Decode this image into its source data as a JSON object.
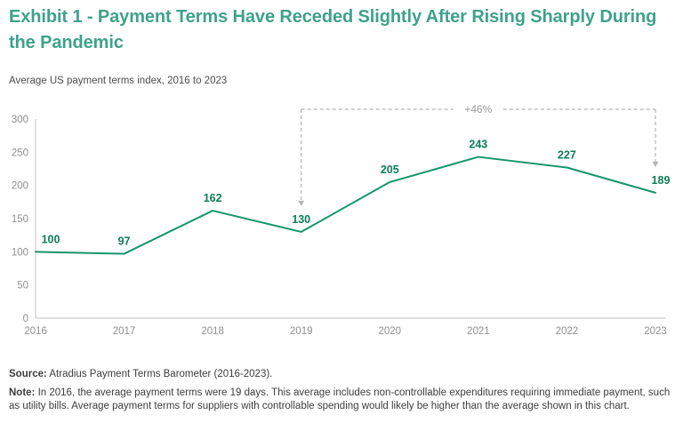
{
  "header": {
    "title": "Exhibit 1 - Payment Terms Have Receded Slightly After Rising Sharply During the Pandemic",
    "subtitle": "Average US payment terms index, 2016 to 2023"
  },
  "chart_data": {
    "type": "line",
    "title": "Average US payment terms index, 2016 to 2023",
    "categories": [
      "2016",
      "2017",
      "2018",
      "2019",
      "2020",
      "2021",
      "2022",
      "2023"
    ],
    "values": [
      100,
      97,
      162,
      130,
      205,
      243,
      227,
      189
    ],
    "xlabel": "",
    "ylabel": "",
    "ylim": [
      0,
      300
    ],
    "yticks": [
      0,
      50,
      100,
      150,
      200,
      250,
      300
    ],
    "grid": false,
    "legend": false,
    "annotation": {
      "label": "+46%",
      "from_category": "2019",
      "to_category": "2023"
    }
  },
  "footer": {
    "source_label": "Source:",
    "source_text": " Atradius Payment Terms Barometer (2016-2023).",
    "note_label": "Note:",
    "note_text": " In 2016, the average payment terms were 19 days. This average includes non-controllable expenditures requiring immediate payment, such as utility bills. Average payment terms for suppliers with controllable spending would likely be higher than the average shown in this chart."
  },
  "colors": {
    "title_green": "#3ea28b",
    "subtitle_gray": "#4d4d4d",
    "line_green": "#149669",
    "data_label_green": "#0b7d57",
    "axis_gray": "#d4d4d4",
    "tick_label_gray": "#8f8f8f",
    "annotation_gray": "#b5b5b5",
    "annotation_text_gray": "#999999",
    "note_gray": "#3d3d3d"
  }
}
